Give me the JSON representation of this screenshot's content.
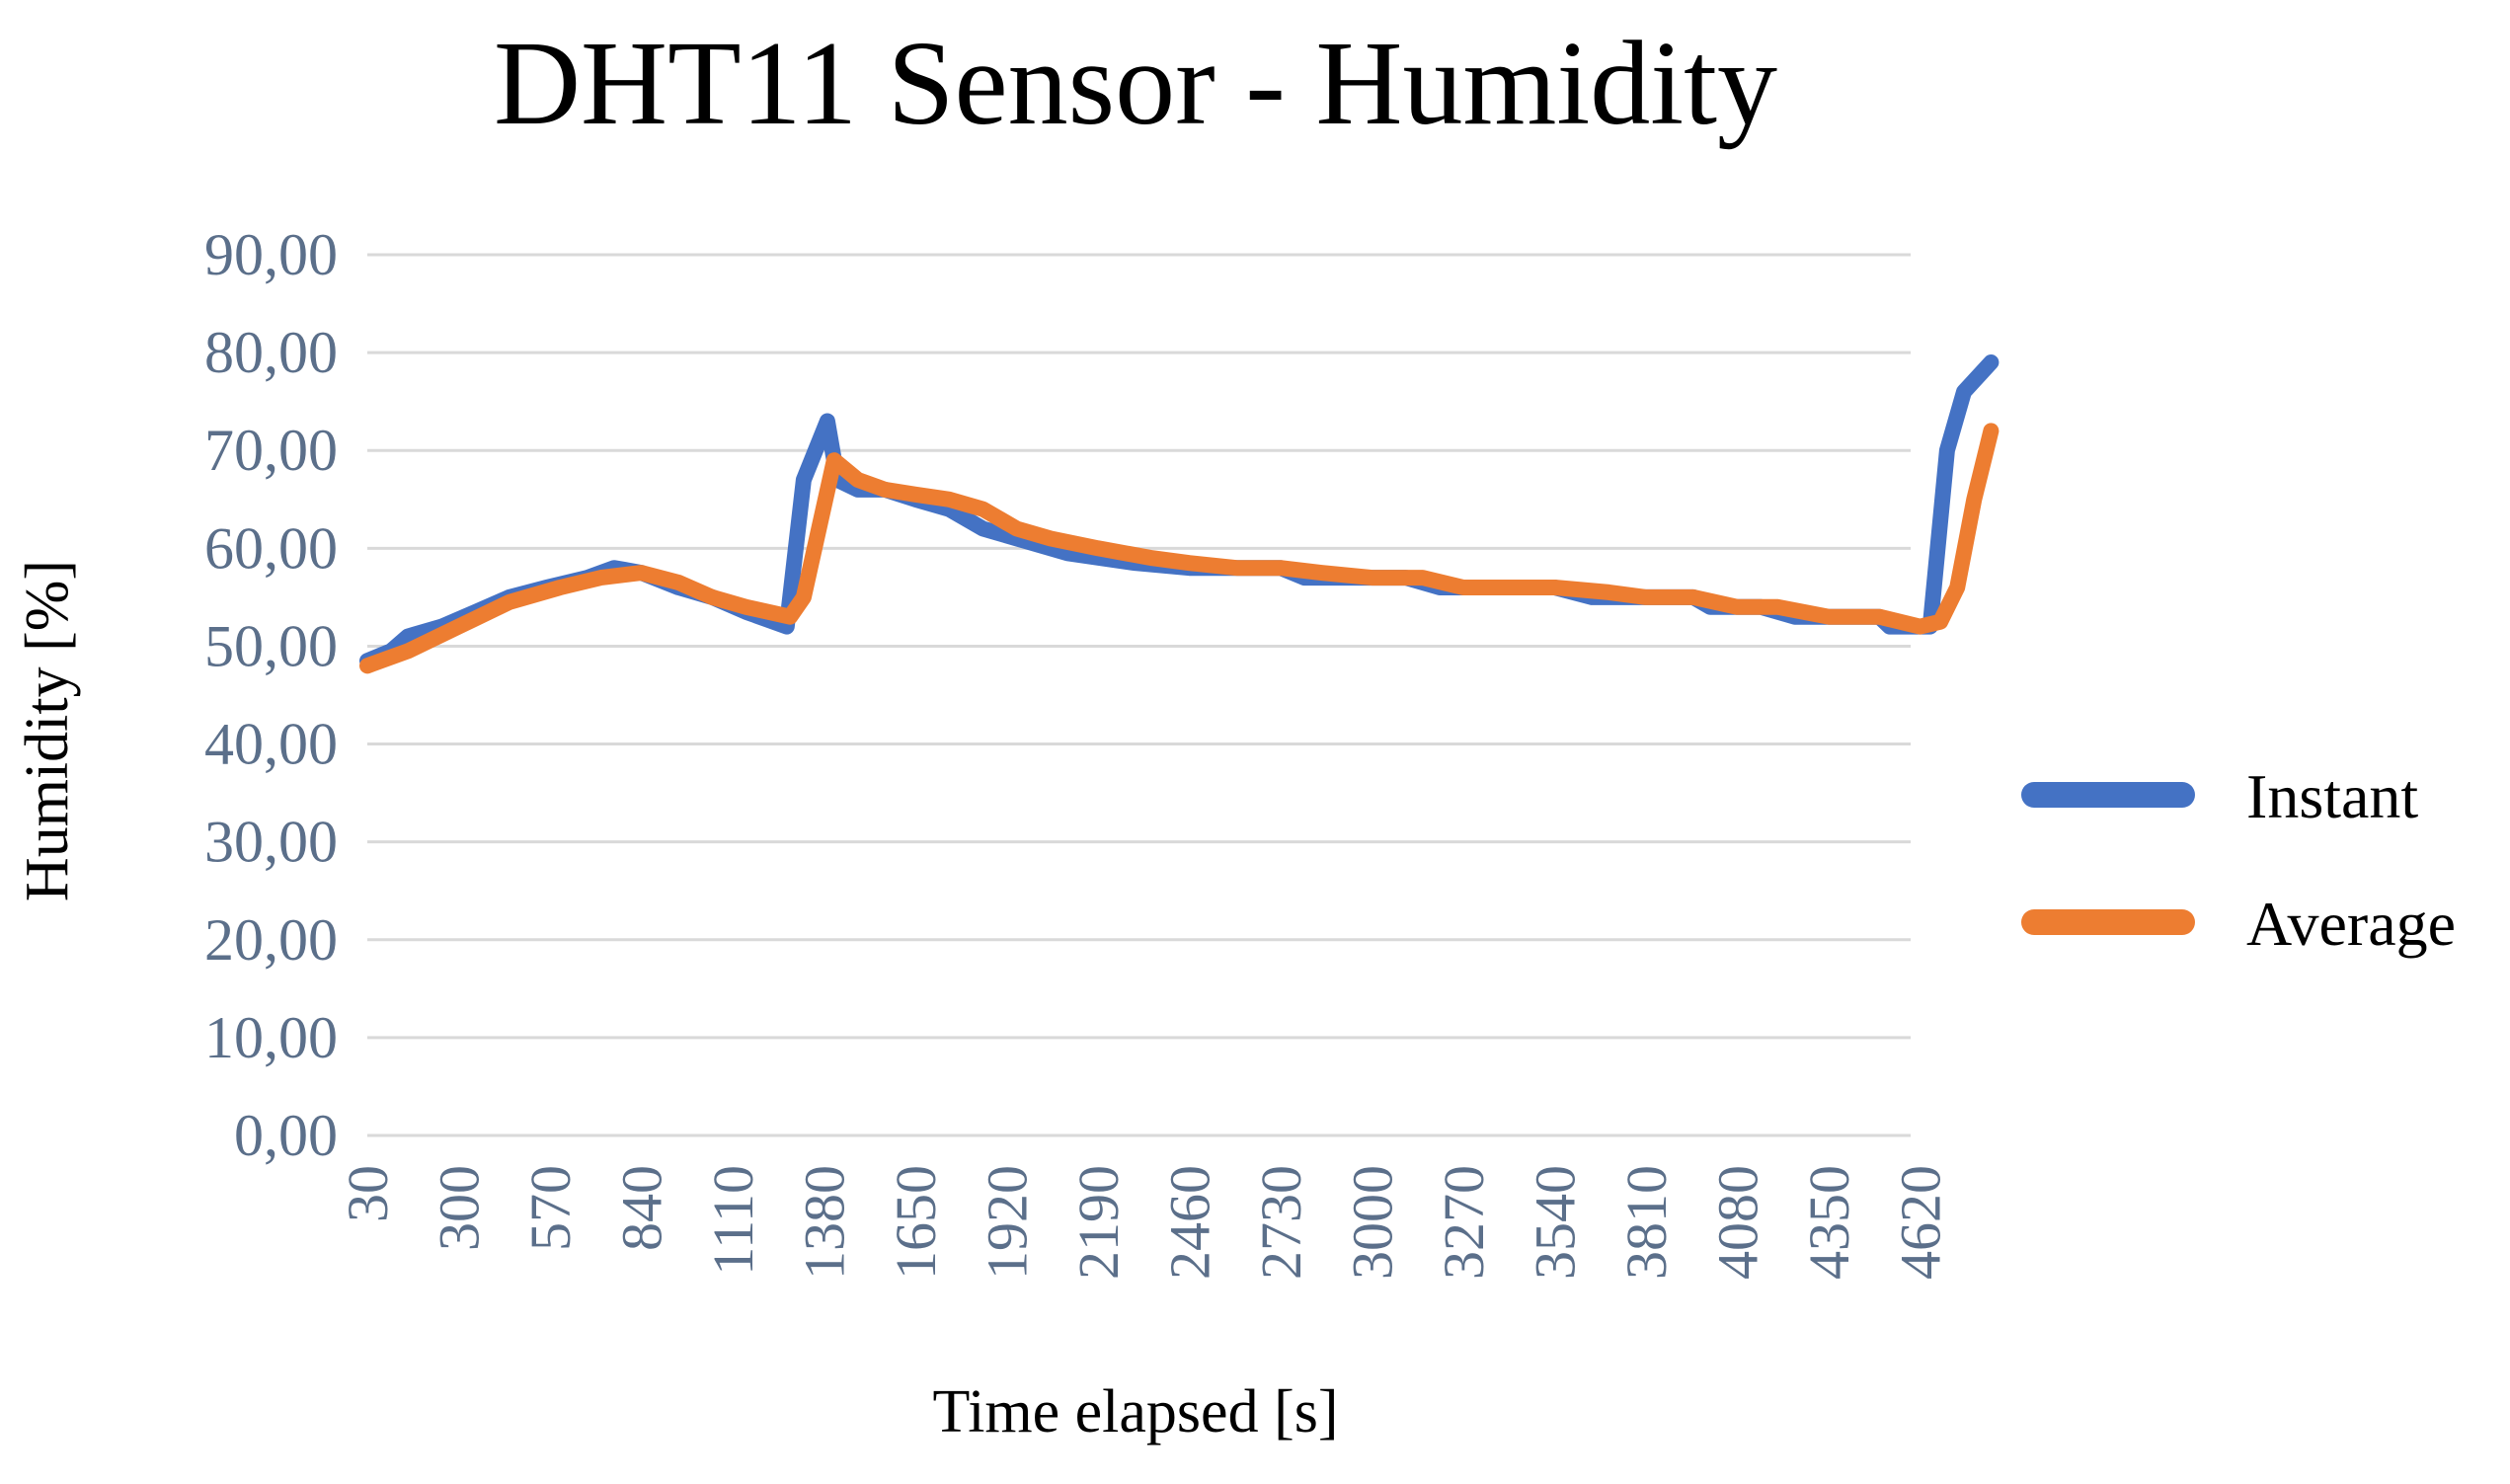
{
  "chart_data": {
    "type": "line",
    "title": "DHT11 Sensor - Humidity",
    "xlabel": "Time elapsed [s]",
    "ylabel": "Humidity [%]",
    "ylim": [
      0,
      90
    ],
    "xlim": [
      30,
      4830
    ],
    "yticks": [
      "0,00",
      "10,00",
      "20,00",
      "30,00",
      "40,00",
      "50,00",
      "60,00",
      "70,00",
      "80,00",
      "90,00"
    ],
    "xticks": [
      "30",
      "300",
      "570",
      "840",
      "1110",
      "1380",
      "1650",
      "1920",
      "2190",
      "2460",
      "2730",
      "3000",
      "3270",
      "3540",
      "3810",
      "4080",
      "4350",
      "4620"
    ],
    "grid": true,
    "legend": "right",
    "series": [
      {
        "name": "Instant",
        "color": "#4472c4",
        "points": [
          [
            30,
            48.5
          ],
          [
            100,
            49.5
          ],
          [
            150,
            51
          ],
          [
            250,
            52
          ],
          [
            350,
            53.5
          ],
          [
            450,
            55
          ],
          [
            560,
            56
          ],
          [
            680,
            57
          ],
          [
            760,
            58
          ],
          [
            840,
            57.5
          ],
          [
            950,
            56
          ],
          [
            1050,
            55
          ],
          [
            1150,
            53.5
          ],
          [
            1270,
            52
          ],
          [
            1320,
            67
          ],
          [
            1390,
            73
          ],
          [
            1420,
            67
          ],
          [
            1480,
            66
          ],
          [
            1560,
            66
          ],
          [
            1650,
            65
          ],
          [
            1750,
            64
          ],
          [
            1850,
            62
          ],
          [
            1950,
            61
          ],
          [
            2100,
            59.5
          ],
          [
            2300,
            58.5
          ],
          [
            2460,
            58
          ],
          [
            2600,
            58
          ],
          [
            2730,
            58
          ],
          [
            2800,
            57
          ],
          [
            2900,
            57
          ],
          [
            3000,
            57
          ],
          [
            3100,
            57
          ],
          [
            3200,
            56
          ],
          [
            3270,
            56
          ],
          [
            3540,
            56
          ],
          [
            3650,
            55
          ],
          [
            3810,
            55
          ],
          [
            3950,
            55
          ],
          [
            4000,
            54
          ],
          [
            4150,
            54
          ],
          [
            4250,
            53
          ],
          [
            4350,
            53
          ],
          [
            4450,
            53
          ],
          [
            4500,
            53
          ],
          [
            4530,
            52
          ],
          [
            4600,
            52
          ],
          [
            4650,
            52
          ],
          [
            4700,
            70
          ],
          [
            4750,
            76
          ],
          [
            4830,
            79
          ]
        ]
      },
      {
        "name": "Average",
        "color": "#ed7d31",
        "points": [
          [
            30,
            48
          ],
          [
            150,
            49.5
          ],
          [
            300,
            52
          ],
          [
            450,
            54.5
          ],
          [
            600,
            56
          ],
          [
            720,
            57
          ],
          [
            840,
            57.5
          ],
          [
            950,
            56.5
          ],
          [
            1050,
            55
          ],
          [
            1150,
            54
          ],
          [
            1280,
            53
          ],
          [
            1320,
            55
          ],
          [
            1410,
            69
          ],
          [
            1480,
            67
          ],
          [
            1560,
            66
          ],
          [
            1650,
            65.5
          ],
          [
            1750,
            65
          ],
          [
            1850,
            64
          ],
          [
            1950,
            62
          ],
          [
            2050,
            61
          ],
          [
            2190,
            60
          ],
          [
            2350,
            59
          ],
          [
            2460,
            58.5
          ],
          [
            2600,
            58
          ],
          [
            2730,
            58
          ],
          [
            2850,
            57.5
          ],
          [
            3000,
            57
          ],
          [
            3150,
            57
          ],
          [
            3270,
            56
          ],
          [
            3400,
            56
          ],
          [
            3540,
            56
          ],
          [
            3700,
            55.5
          ],
          [
            3810,
            55
          ],
          [
            3950,
            55
          ],
          [
            4080,
            54
          ],
          [
            4200,
            54
          ],
          [
            4350,
            53
          ],
          [
            4500,
            53
          ],
          [
            4620,
            52
          ],
          [
            4680,
            52.5
          ],
          [
            4730,
            56
          ],
          [
            4780,
            65
          ],
          [
            4830,
            72
          ]
        ]
      }
    ]
  }
}
